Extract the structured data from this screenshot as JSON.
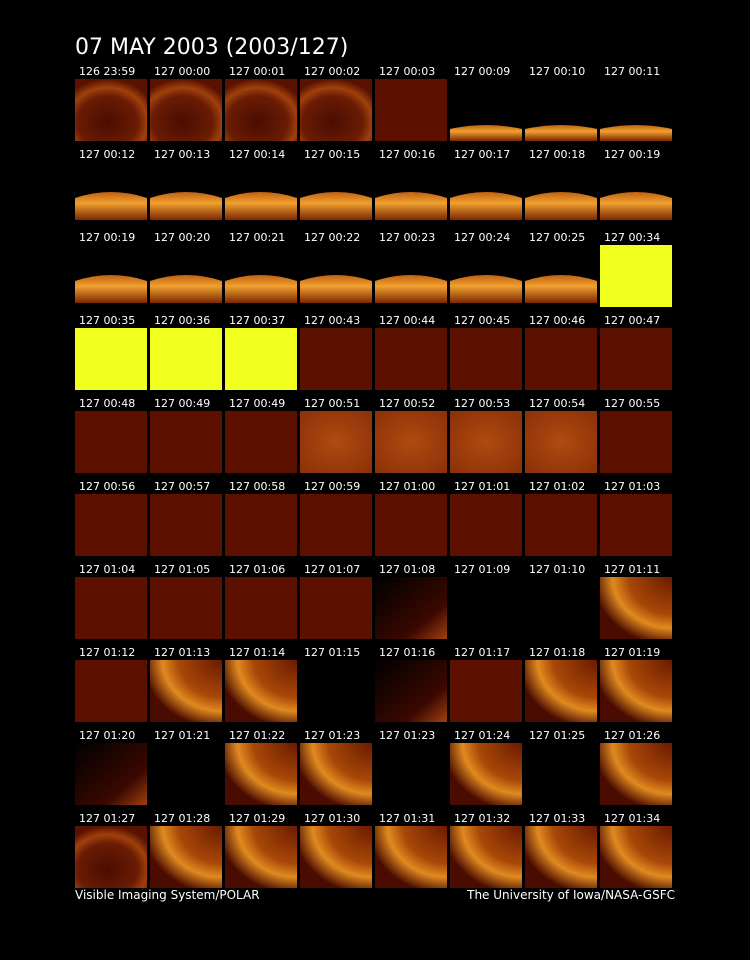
{
  "header": {
    "title": "07 MAY 2003  (2003/127)"
  },
  "rows": [
    [
      "126 23:59",
      "127 00:00",
      "127 00:01",
      "127 00:02",
      "127 00:03",
      "127 00:09",
      "127 00:10",
      "127 00:11"
    ],
    [
      "127 00:12",
      "127 00:13",
      "127 00:14",
      "127 00:15",
      "127 00:16",
      "127 00:17",
      "127 00:18",
      "127 00:19"
    ],
    [
      "127 00:19",
      "127 00:20",
      "127 00:21",
      "127 00:22",
      "127 00:23",
      "127 00:24",
      "127 00:25",
      "127 00:34"
    ],
    [
      "127 00:35",
      "127 00:36",
      "127 00:37",
      "127 00:43",
      "127 00:44",
      "127 00:45",
      "127 00:46",
      "127 00:47"
    ],
    [
      "127 00:48",
      "127 00:49",
      "127 00:49",
      "127 00:51",
      "127 00:52",
      "127 00:53",
      "127 00:54",
      "127 00:55"
    ],
    [
      "127 00:56",
      "127 00:57",
      "127 00:58",
      "127 00:59",
      "127 01:00",
      "127 01:01",
      "127 01:02",
      "127 01:03"
    ],
    [
      "127 01:04",
      "127 01:05",
      "127 01:06",
      "127 01:07",
      "127 01:08",
      "127 01:09",
      "127 01:10",
      "127 01:11"
    ],
    [
      "127 01:12",
      "127 01:13",
      "127 01:14",
      "127 01:15",
      "127 01:16",
      "127 01:17",
      "127 01:18",
      "127 01:19"
    ],
    [
      "127 01:20",
      "127 01:21",
      "127 01:22",
      "127 01:23",
      "127 01:23",
      "127 01:24",
      "127 01:25",
      "127 01:26"
    ],
    [
      "127 01:27",
      "127 01:28",
      "127 01:29",
      "127 01:30",
      "127 01:31",
      "127 01:32",
      "127 01:33",
      "127 01:34"
    ]
  ],
  "footer": {
    "left": "Visible Imaging System/POLAR",
    "right": "The University of Iowa/NASA-GSFC"
  }
}
